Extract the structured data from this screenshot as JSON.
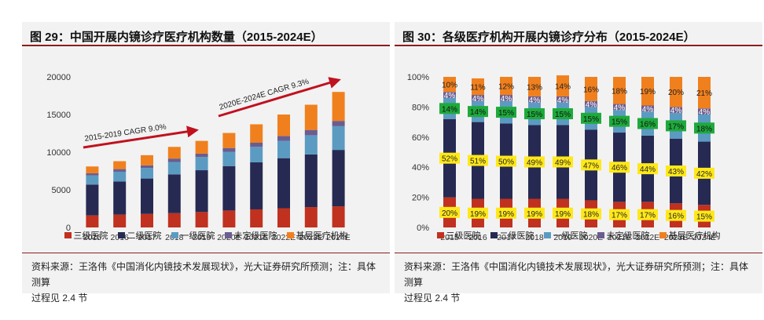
{
  "colors": {
    "三级医院": "#c0311f",
    "二级医院": "#262a52",
    "一级医院": "#5b9bc2",
    "未定级医院": "#6b5d8f",
    "基层医疗机构": "#f0801e",
    "arrow": "#c0111f",
    "green_label": "#1eaa3c",
    "yellow_label": "#ffe81a"
  },
  "left": {
    "title": "图 29：中国开展内镜诊疗医疗机构数量（2015-2024E）",
    "source_line1": "资料来源：王洛伟《中国消化内镜技术发展现状》，光大证券研究所预测；注：具体测算",
    "source_line2": "过程见 2.4 节",
    "annotations": [
      "2015-2019 CAGR 9.0%",
      "2020E-2024E CAGR 9.3%"
    ],
    "legend": [
      "三级医院",
      "二级医院",
      "一级医院",
      "未定级医院",
      "基层医疗机构"
    ]
  },
  "right": {
    "title": "图 30：各级医疗机构开展内镜诊疗分布（2015-2024E）",
    "source_line1": "资料来源：王洛伟《中国消化内镜技术发展现状》，光大证券研究所预测；注：具体测算",
    "source_line2": "过程见 2.4 节",
    "legend": [
      "三级医院",
      "二级医院",
      "一级医院",
      "未定级医院",
      "基层医疗机构"
    ]
  },
  "chart_data": [
    {
      "type": "bar",
      "stacked": true,
      "categories": [
        "2015",
        "2016",
        "2017",
        "2018",
        "2019",
        "2020E",
        "2021E",
        "2022E",
        "2023E",
        "2024E"
      ],
      "series": [
        {
          "name": "三级医院",
          "values": [
            1600,
            1700,
            1800,
            1900,
            2050,
            2250,
            2400,
            2550,
            2700,
            2800
          ]
        },
        {
          "name": "二级医院",
          "values": [
            4100,
            4400,
            4700,
            5150,
            5550,
            5900,
            6250,
            6650,
            7000,
            7500
          ]
        },
        {
          "name": "一级医院",
          "values": [
            1200,
            1300,
            1400,
            1650,
            1750,
            1900,
            2050,
            2300,
            2550,
            3150
          ]
        },
        {
          "name": "未定级医院",
          "values": [
            300,
            350,
            350,
            450,
            450,
            500,
            550,
            650,
            700,
            700
          ]
        },
        {
          "name": "基层医疗机构",
          "values": [
            900,
            1050,
            1350,
            1550,
            1700,
            2000,
            2450,
            2850,
            3350,
            3850
          ]
        }
      ],
      "ylim": [
        0,
        20000
      ],
      "yticks": [
        "0",
        "5000",
        "10000",
        "15000",
        "20000"
      ],
      "grid": false,
      "legend_position": "bottom"
    },
    {
      "type": "bar",
      "stacked": true,
      "percent": true,
      "categories": [
        "2015",
        "2016",
        "2017",
        "2018",
        "2019",
        "2020E",
        "2021E",
        "2022E",
        "2023E",
        "2024E"
      ],
      "series": [
        {
          "name": "三级医院",
          "values": [
            20,
            19,
            19,
            19,
            19,
            18,
            17,
            17,
            16,
            15
          ]
        },
        {
          "name": "二级医院",
          "values": [
            52,
            51,
            50,
            49,
            49,
            47,
            46,
            44,
            43,
            42
          ]
        },
        {
          "name": "一级医院",
          "values": [
            14,
            14,
            15,
            15,
            15,
            15,
            15,
            16,
            17,
            18
          ]
        },
        {
          "name": "未定级医院",
          "values": [
            4,
            4,
            4,
            4,
            4,
            4,
            4,
            4,
            4,
            4
          ]
        },
        {
          "name": "基层医疗机构",
          "values": [
            10,
            11,
            12,
            13,
            14,
            16,
            18,
            19,
            20,
            21
          ]
        }
      ],
      "ylim": [
        0,
        100
      ],
      "yticks": [
        "0%",
        "20%",
        "40%",
        "60%",
        "80%",
        "100%"
      ],
      "grid": false,
      "legend_position": "bottom"
    }
  ]
}
